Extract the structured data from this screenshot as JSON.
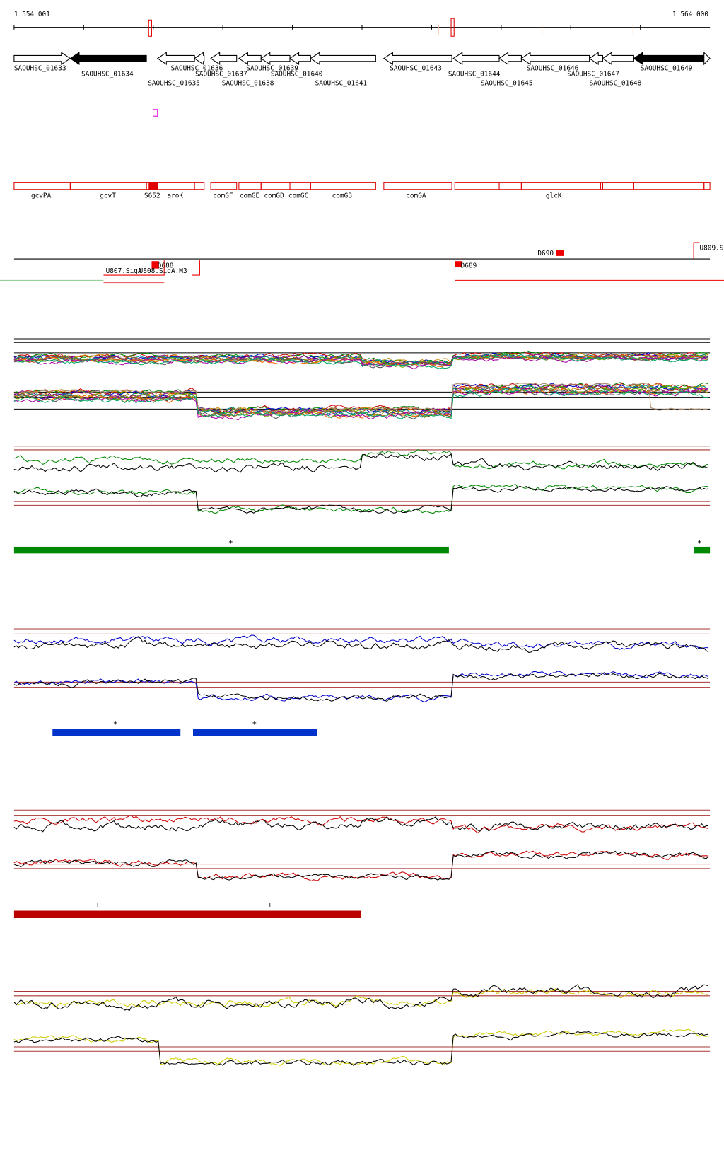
{
  "ruler": {
    "start": "1 554 001",
    "end": "1 564 000"
  },
  "genes": [
    "SAOUHSC_01633",
    "SAOUHSC_01634",
    "SAOUHSC_01635",
    "SAOUHSC_01636",
    "SAOUHSC_01637",
    "SAOUHSC_01638",
    "SAOUHSC_01639",
    "SAOUHSC_01640",
    "SAOUHSC_01641",
    "SAOUHSC_01643",
    "SAOUHSC_01644",
    "SAOUHSC_01645",
    "SAOUHSC_01646",
    "SAOUHSC_01647",
    "SAOUHSC_01648",
    "SAOUHSC_01649"
  ],
  "gene_names": [
    "gcvPA",
    "gcvT",
    "S652",
    "aroK",
    "comGF",
    "comGE",
    "comGD",
    "comGC",
    "comGB",
    "comGA",
    "glcK"
  ],
  "features": [
    "D688",
    "D689",
    "D690",
    "U809.S",
    "U807.SigA",
    "U808.SigA.M3"
  ],
  "track_marks": {
    "green": [
      "+",
      "+"
    ],
    "blue": [
      "+",
      "+"
    ],
    "red": [
      "+",
      "+"
    ]
  }
}
